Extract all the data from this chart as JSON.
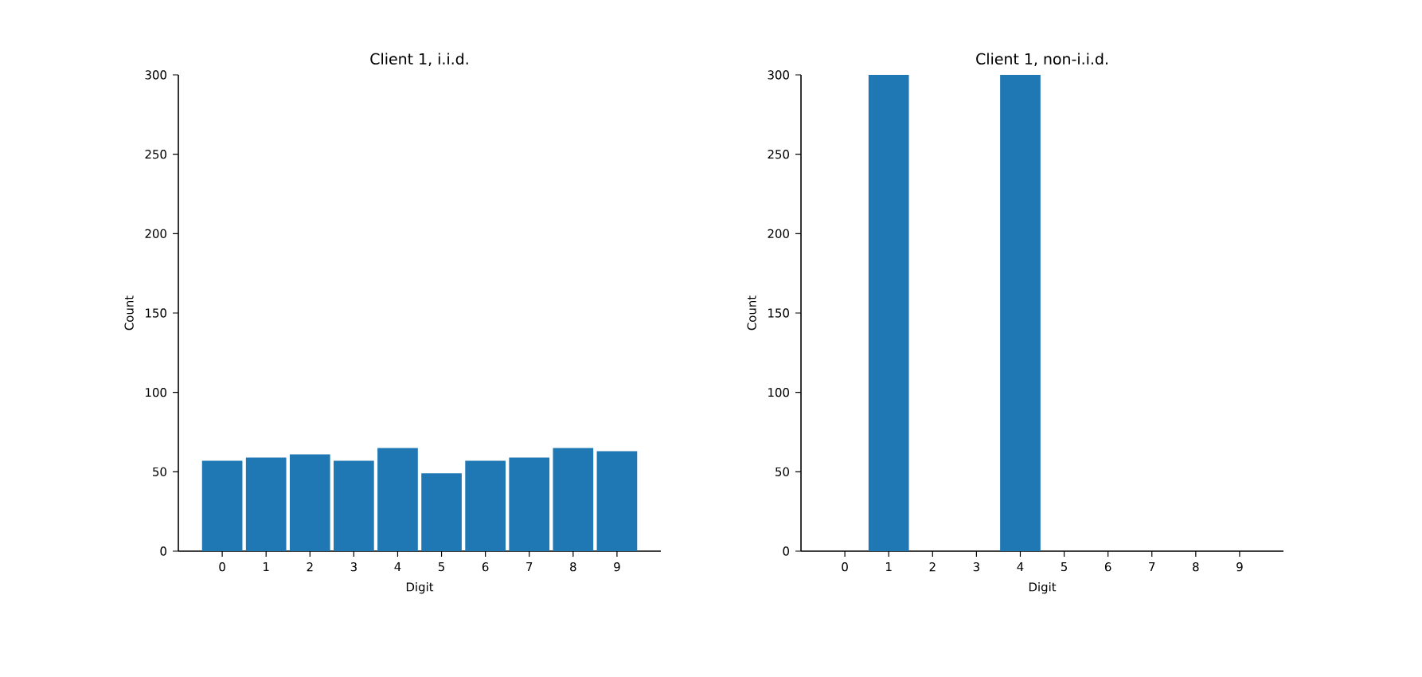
{
  "chart_data": [
    {
      "type": "bar",
      "title": "Client 1, i.i.d.",
      "xlabel": "Digit",
      "ylabel": "Count",
      "categories": [
        "0",
        "1",
        "2",
        "3",
        "4",
        "5",
        "6",
        "7",
        "8",
        "9"
      ],
      "values": [
        57,
        59,
        61,
        57,
        65,
        49,
        57,
        59,
        65,
        63
      ],
      "color": "#1f77b4",
      "ylim": [
        0,
        300
      ],
      "yticks": [
        0,
        50,
        100,
        150,
        200,
        250,
        300
      ],
      "grid": false,
      "legend": false
    },
    {
      "type": "bar",
      "title": "Client 1, non-i.i.d.",
      "xlabel": "Digit",
      "ylabel": "Count",
      "categories": [
        "0",
        "1",
        "2",
        "3",
        "4",
        "5",
        "6",
        "7",
        "8",
        "9"
      ],
      "values": [
        0,
        300,
        0,
        0,
        300,
        0,
        0,
        0,
        0,
        0
      ],
      "color": "#1f77b4",
      "ylim": [
        0,
        300
      ],
      "yticks": [
        0,
        50,
        100,
        150,
        200,
        250,
        300
      ],
      "grid": false,
      "legend": false
    }
  ]
}
